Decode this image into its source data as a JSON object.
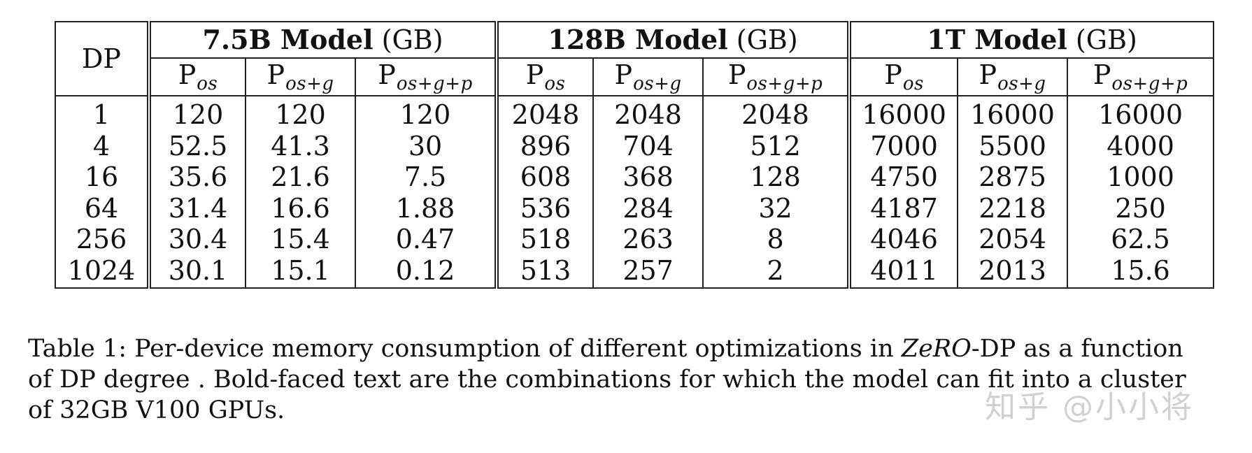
{
  "table": {
    "dp_header": "DP",
    "groups": [
      {
        "name": "7.5B Model",
        "unit": "(GB)"
      },
      {
        "name": "128B Model",
        "unit": "(GB)"
      },
      {
        "name": "1T Model",
        "unit": "(GB)"
      }
    ],
    "subheaders": [
      {
        "base": "P",
        "sub": "os"
      },
      {
        "base": "P",
        "sub": "os+g"
      },
      {
        "base": "P",
        "sub": "os+g+p"
      }
    ],
    "rows": [
      {
        "dp": "1",
        "cells": [
          "120",
          "120",
          "120",
          "2048",
          "2048",
          "2048",
          "16000",
          "16000",
          "16000"
        ]
      },
      {
        "dp": "4",
        "cells": [
          "52.5",
          "41.3",
          "30",
          "896",
          "704",
          "512",
          "7000",
          "5500",
          "4000"
        ]
      },
      {
        "dp": "16",
        "cells": [
          "35.6",
          "21.6",
          "7.5",
          "608",
          "368",
          "128",
          "4750",
          "2875",
          "1000"
        ]
      },
      {
        "dp": "64",
        "cells": [
          "31.4",
          "16.6",
          "1.88",
          "536",
          "284",
          "32",
          "4187",
          "2218",
          "250"
        ]
      },
      {
        "dp": "256",
        "cells": [
          "30.4",
          "15.4",
          "0.47",
          "518",
          "263",
          "8",
          "4046",
          "2054",
          "62.5"
        ]
      },
      {
        "dp": "1024",
        "cells": [
          "30.1",
          "15.1",
          "0.12",
          "513",
          "257",
          "2",
          "4011",
          "2013",
          "15.6"
        ]
      }
    ],
    "bold_cells": [
      [
        1,
        2
      ],
      [
        2,
        1
      ],
      [
        3,
        0
      ],
      [
        3,
        5
      ],
      [
        5,
        8
      ]
    ]
  },
  "caption": {
    "line1_a": "Table 1: Per-device memory consumption of different optimizations in ",
    "line1_italic": "ZeRO",
    "line1_b": "-DP as a function",
    "line2": "of DP degree . Bold-faced text are the combinations for which the model can fit into a cluster",
    "line3": "of 32GB V100 GPUs."
  },
  "watermark": "知乎 @小小将"
}
